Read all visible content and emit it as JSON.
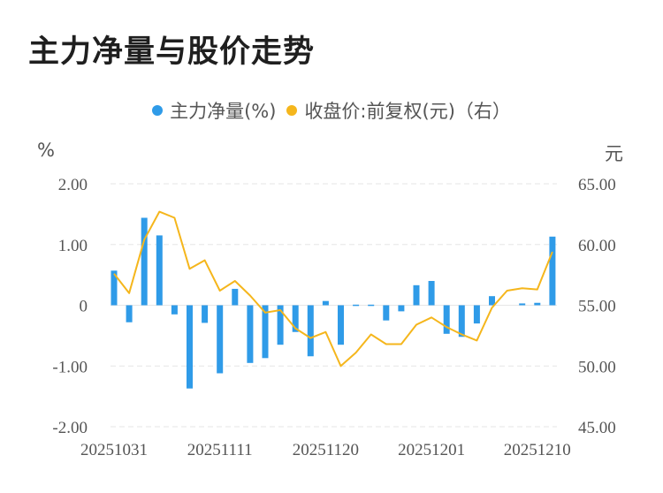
{
  "title": "主力净量与股价走势",
  "legend": {
    "bar_label": "主力净量(%)",
    "line_label": "收盘价:前复权(元)（右）"
  },
  "axis_units": {
    "left": "%",
    "right": "元"
  },
  "colors": {
    "bar": "#2f9be8",
    "line": "#f5b61c",
    "grid": "#e6e6e6",
    "text": "#555555"
  },
  "chart_data": {
    "type": "bar+line",
    "title": "主力净量与股价走势",
    "left_axis": {
      "label": "%",
      "range": [
        -2,
        2
      ],
      "ticks": [
        "2.00",
        "1.00",
        "0",
        "-1.00",
        "-2.00"
      ]
    },
    "right_axis": {
      "label": "元",
      "range": [
        45,
        65
      ],
      "ticks": [
        "65.00",
        "60.00",
        "55.00",
        "50.00",
        "45.00"
      ]
    },
    "x_tick_labels": [
      "20251031",
      "20251111",
      "20251120",
      "20251201",
      "20251210"
    ],
    "x_tick_indices": [
      0,
      7,
      14,
      21,
      28
    ],
    "grid": true,
    "legend_position": "top",
    "series": [
      {
        "name": "主力净量(%)",
        "type": "bar",
        "axis": "left",
        "values": [
          0.57,
          -0.28,
          1.44,
          1.15,
          -0.15,
          -1.37,
          -0.29,
          -1.12,
          0.27,
          -0.95,
          -0.87,
          -0.65,
          -0.44,
          -0.84,
          0.07,
          -0.65,
          0.01,
          0.01,
          -0.25,
          -0.1,
          0.33,
          0.4,
          -0.47,
          -0.52,
          -0.3,
          0.15,
          0.0,
          0.03,
          0.04,
          1.13
        ]
      },
      {
        "name": "收盘价:前复权(元)（右）",
        "type": "line",
        "axis": "right",
        "values": [
          57.6,
          56.0,
          60.4,
          62.7,
          62.2,
          58.0,
          58.7,
          56.2,
          57.0,
          55.8,
          54.4,
          54.6,
          53.1,
          52.3,
          52.8,
          50.0,
          51.1,
          52.6,
          51.8,
          51.8,
          53.4,
          54.0,
          53.2,
          52.6,
          52.1,
          54.8,
          56.2,
          56.4,
          56.3,
          59.4
        ]
      }
    ]
  }
}
